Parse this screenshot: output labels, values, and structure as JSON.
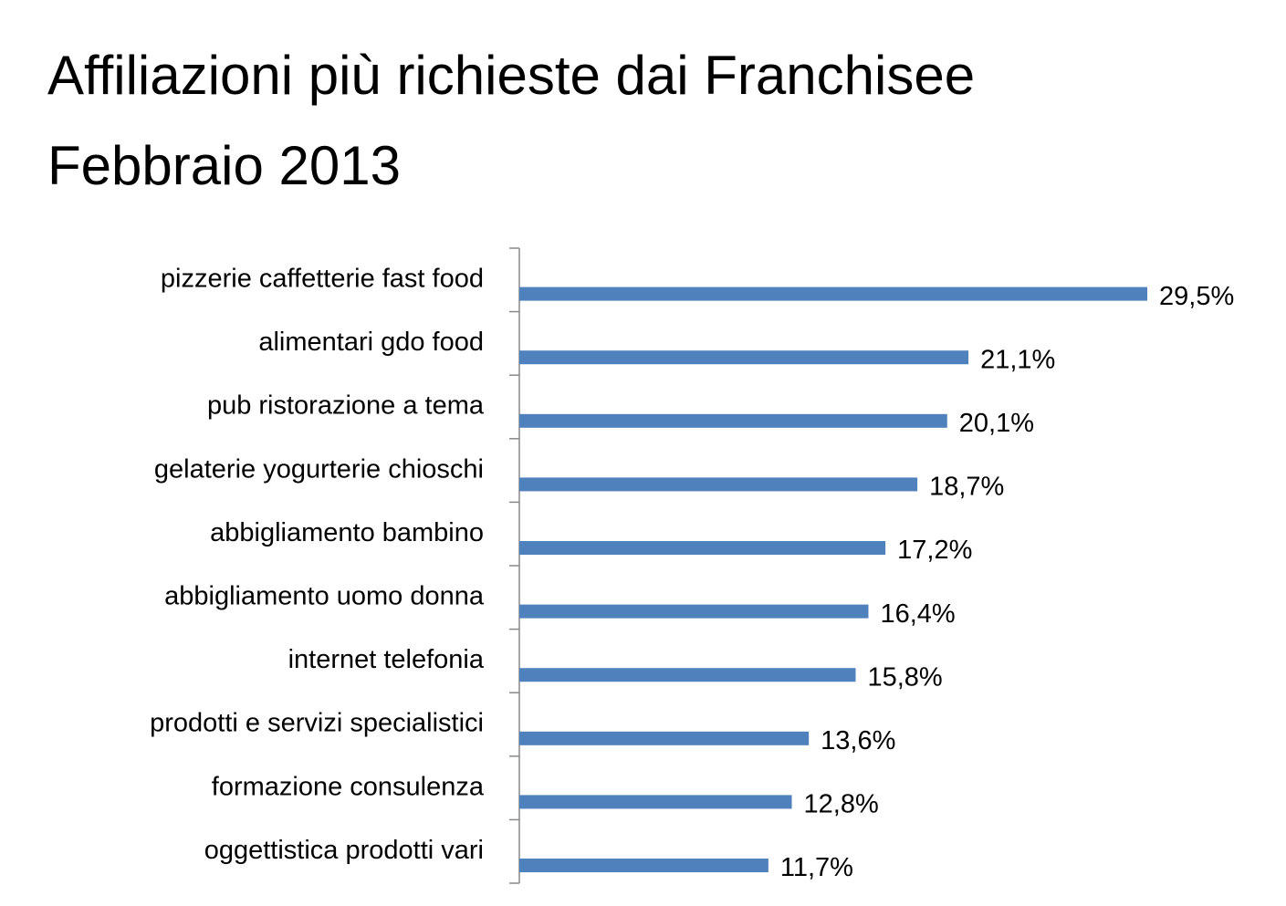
{
  "chart_data": {
    "type": "barh",
    "title": [
      "Affiliazioni più richieste dai Franchisee",
      "Febbraio 2013"
    ],
    "categories": [
      "pizzerie caffetterie fast food",
      "alimentari gdo food",
      "pub ristorazione a tema",
      "gelaterie yogurterie chioschi",
      "abbigliamento bambino",
      "abbigliamento uomo donna",
      "internet telefonia",
      "prodotti e servizi specialistici",
      "formazione consulenza",
      "oggettistica prodotti vari"
    ],
    "values": [
      29.5,
      21.1,
      20.1,
      18.7,
      17.2,
      16.4,
      15.8,
      13.6,
      12.8,
      11.7
    ],
    "value_labels": [
      "29,5%",
      "21,1%",
      "20,1%",
      "18,7%",
      "17,2%",
      "16,4%",
      "15,8%",
      "13,6%",
      "12,8%",
      "11,7%"
    ],
    "color": "#4f81bd"
  }
}
